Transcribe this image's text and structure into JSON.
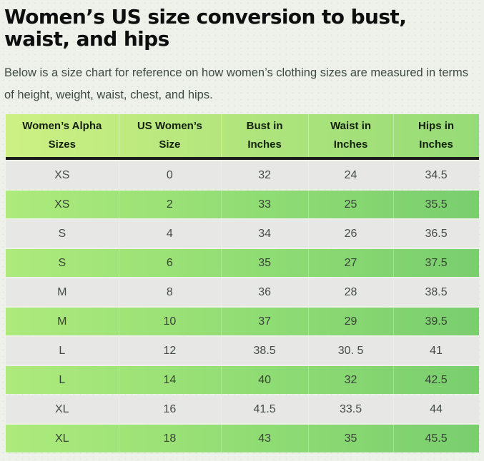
{
  "article": {
    "title": "Women’s US size conversion to bust, waist, and hips",
    "subtitle": "Below is a size chart for reference on how women’s clothing sizes are measured in terms of height, weight, waist, chest, and hips."
  },
  "table": {
    "columns": [
      {
        "label": "Women’s Alpha\nSizes"
      },
      {
        "label": "US Women’s\nSize"
      },
      {
        "label": "Bust in\nInches"
      },
      {
        "label": "Waist in\nInches"
      },
      {
        "label": "Hips in\nInches"
      }
    ],
    "rows": [
      {
        "cells": [
          "XS",
          "0",
          "32",
          "24",
          "34.5"
        ]
      },
      {
        "cells": [
          "XS",
          "2",
          "33",
          "25",
          "35.5"
        ]
      },
      {
        "cells": [
          "S",
          "4",
          "34",
          "26",
          "36.5"
        ]
      },
      {
        "cells": [
          "S",
          "6",
          "35",
          "27",
          "37.5"
        ]
      },
      {
        "cells": [
          "M",
          "8",
          "36",
          "28",
          "38.5"
        ]
      },
      {
        "cells": [
          "M",
          "10",
          "37",
          "29",
          "39.5"
        ]
      },
      {
        "cells": [
          "L",
          "12",
          "38.5",
          "30. 5",
          "41"
        ]
      },
      {
        "cells": [
          "L",
          "14",
          "40",
          "32",
          "42.5"
        ]
      },
      {
        "cells": [
          "XL",
          "16",
          "41.5",
          "33.5",
          "44"
        ]
      },
      {
        "cells": [
          "XL",
          "18",
          "43",
          "35",
          "45.5"
        ]
      }
    ]
  },
  "colors": {
    "page_bg": "#edf1ea",
    "header_gradient_left": "#cdf083",
    "header_gradient_right": "#96db77",
    "row_green_left": "#aeea7c",
    "row_green_right": "#7ace6e",
    "row_gray": "#e7e7e6",
    "header_divider": "#1b1b1b",
    "title_text": "#0e0e0e",
    "body_text": "#3e4a43"
  }
}
